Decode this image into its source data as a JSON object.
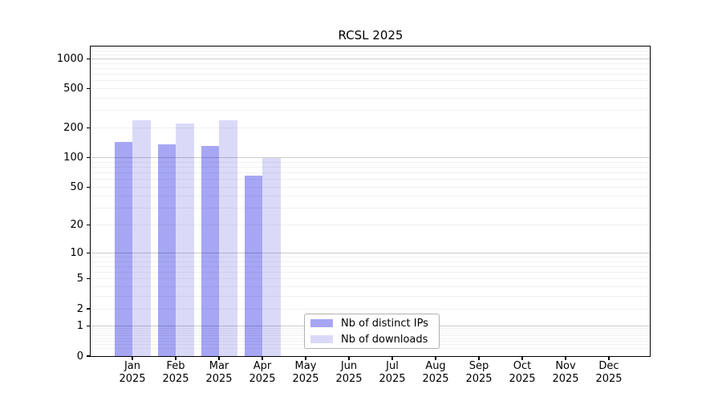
{
  "figure": {
    "background": "#ffffff"
  },
  "chart_data": {
    "type": "bar",
    "title": "RCSL 2025",
    "categories": [
      "Jan 2025",
      "Feb 2025",
      "Mar 2025",
      "Apr 2025",
      "May 2025",
      "Jun 2025",
      "Jul 2025",
      "Aug 2025",
      "Sep 2025",
      "Oct 2025",
      "Nov 2025",
      "Dec 2025"
    ],
    "series": [
      {
        "name": "Nb of distinct IPs",
        "color": "#a6a6f5",
        "values": [
          143,
          136,
          132,
          65,
          0,
          0,
          0,
          0,
          0,
          0,
          0,
          0
        ]
      },
      {
        "name": "Nb of downloads",
        "color": "#dadaf8",
        "values": [
          239,
          221,
          241,
          100,
          0,
          0,
          0,
          0,
          0,
          0,
          0,
          0
        ]
      }
    ],
    "xlabel": "",
    "ylabel": "",
    "y_scale": "symlog-log1p",
    "y_ticks": [
      0,
      1,
      2,
      5,
      10,
      20,
      50,
      100,
      200,
      500,
      1000
    ],
    "y_max": 1320,
    "grid": "horizontal",
    "legend_position": "inside-bottom-center"
  },
  "colors": {
    "major_grid": "#cccccc",
    "minor_grid": "#f1f1f1",
    "axis": "#000000",
    "text": "#000000",
    "legend_border": "#b0b0b0"
  }
}
